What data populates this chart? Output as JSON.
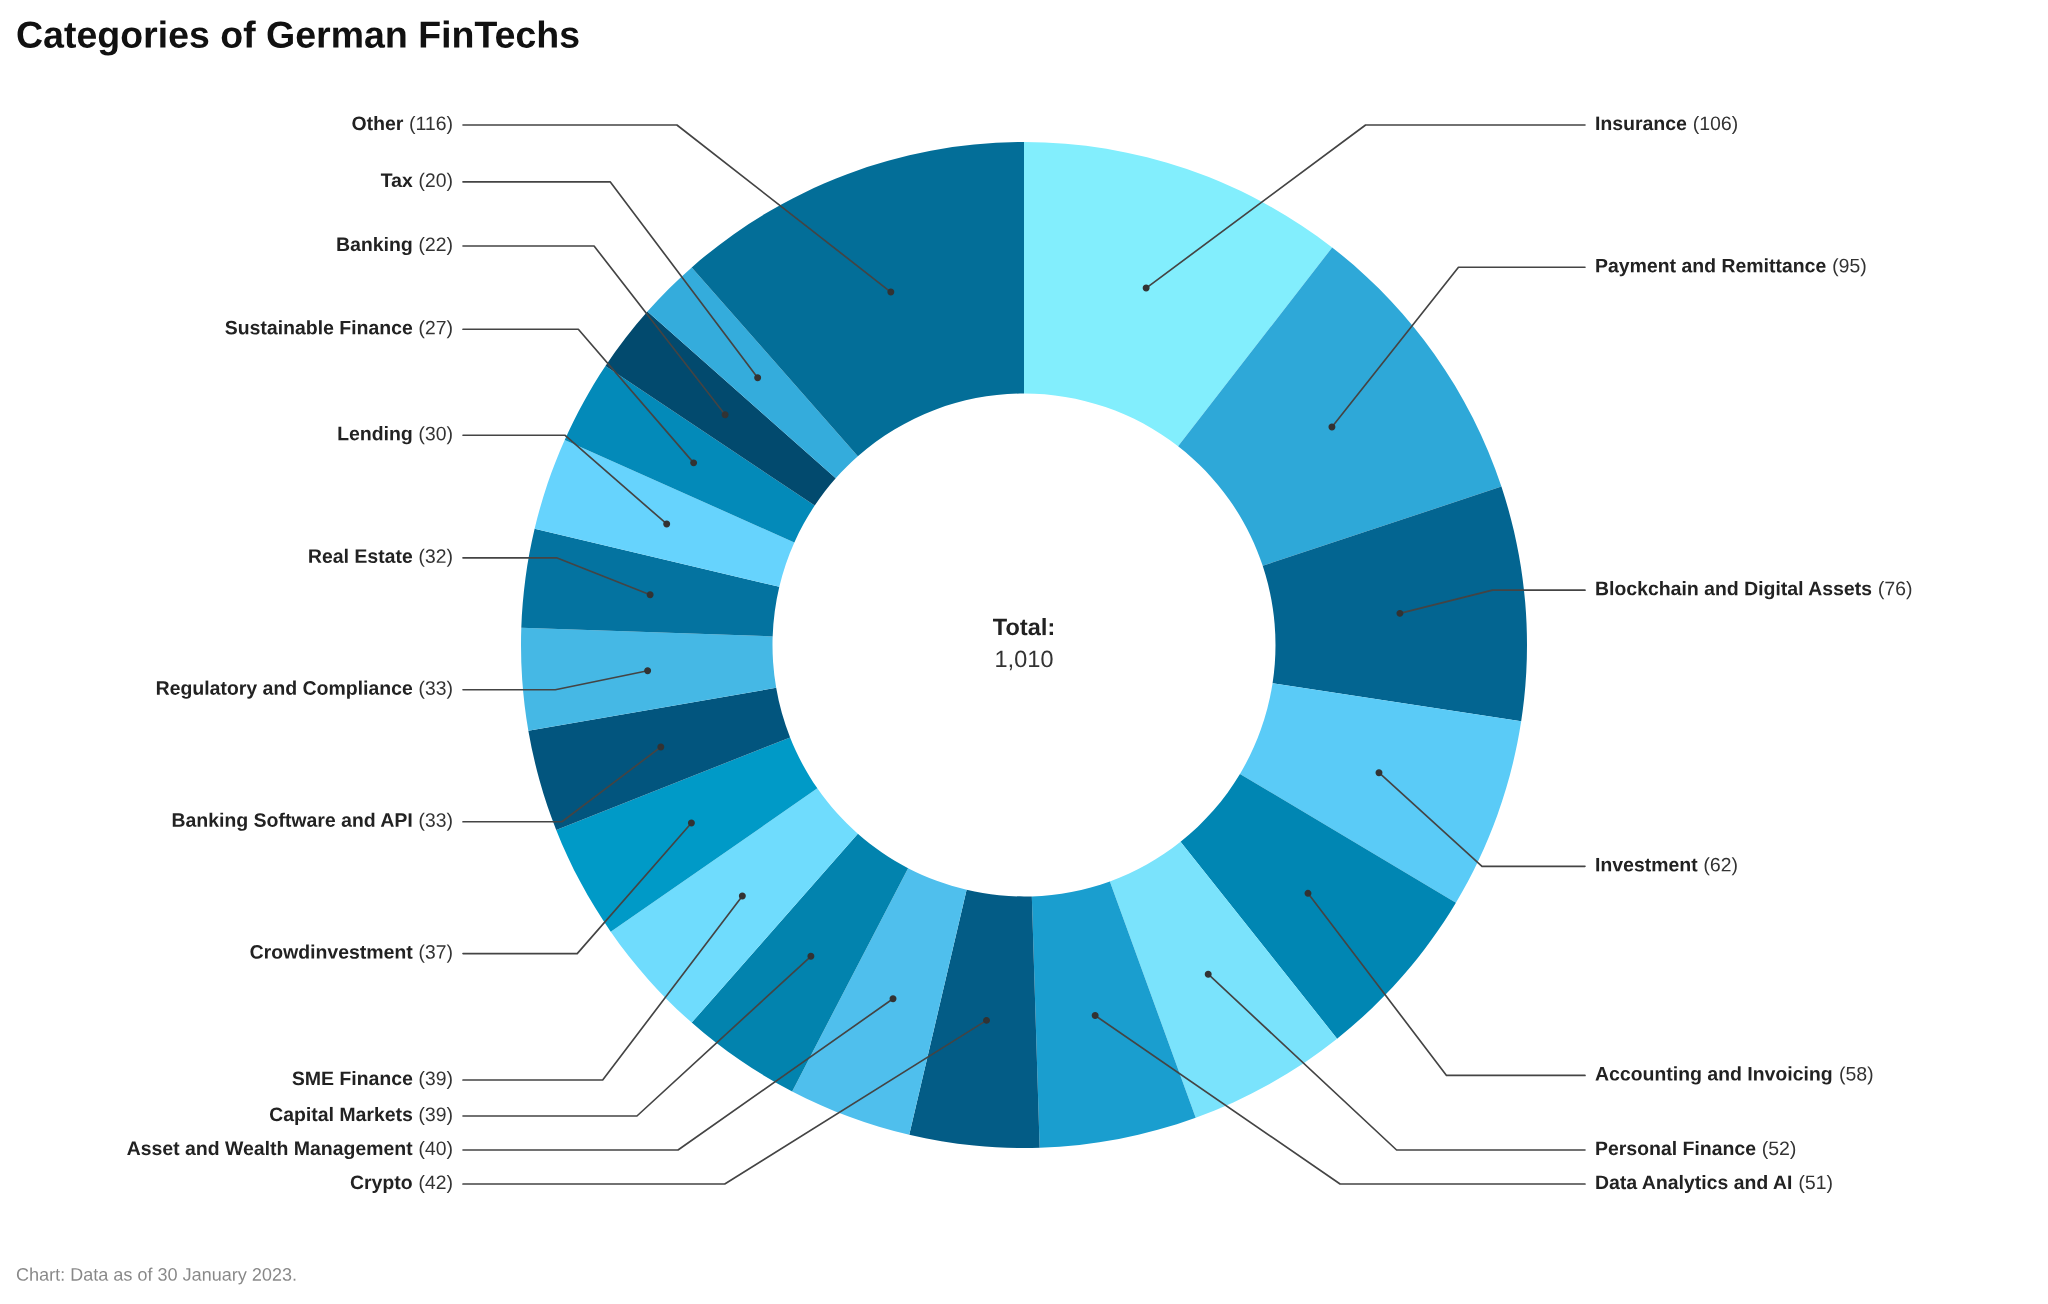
{
  "chart_data": {
    "type": "donut",
    "title": "Categories of German FinTechs",
    "categories": [
      "Insurance",
      "Payment and Remittance",
      "Blockchain and Digital Assets",
      "Investment",
      "Accounting and Invoicing",
      "Personal Finance",
      "Data Analytics and AI",
      "Crypto",
      "Asset and Wealth Management",
      "Capital Markets",
      "SME Finance",
      "Crowdinvestment",
      "Banking Software and API",
      "Regulatory and Compliance",
      "Real Estate",
      "Lending",
      "Sustainable Finance",
      "Banking",
      "Tax",
      "Other"
    ],
    "values": [
      106,
      95,
      76,
      62,
      58,
      52,
      51,
      42,
      40,
      39,
      39,
      37,
      33,
      33,
      32,
      30,
      27,
      22,
      20,
      116
    ],
    "colors": [
      "#82eefd",
      "#2ea8d8",
      "#036591",
      "#5acbf7",
      "#0086b3",
      "#7ae3fc",
      "#1a9ecf",
      "#035c86",
      "#4fbfed",
      "#0283ae",
      "#6fdcfd",
      "#009ac7",
      "#02557e",
      "#45b8e5",
      "#0473a0",
      "#66d3fd",
      "#038ab9",
      "#024a6e",
      "#34acdc",
      "#036e98"
    ],
    "value_labels": [
      "(106)",
      "(95)",
      "(76)",
      "(62)",
      "(58)",
      "(52)",
      "(51)",
      "(42)",
      "(40)",
      "(39)",
      "(39)",
      "(37)",
      "(33)",
      "(33)",
      "(32)",
      "(30)",
      "(27)",
      "(22)",
      "(20)",
      "(116)"
    ],
    "legend": false,
    "annotations": [
      "Total:",
      "1,010",
      "Chart: Data as of 30 January 2023."
    ]
  }
}
